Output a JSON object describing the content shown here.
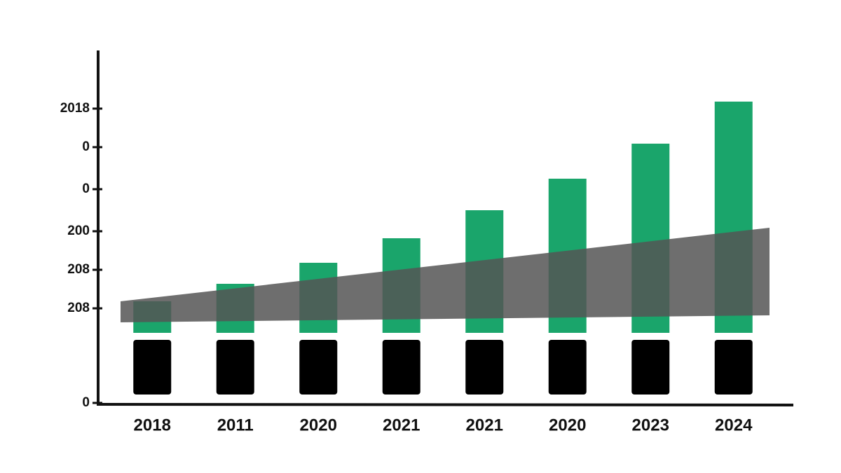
{
  "chart_data": {
    "type": "bar",
    "categories": [
      "2018",
      "2011",
      "2020",
      "2021",
      "2021",
      "2020",
      "2023",
      "2024"
    ],
    "series": [
      {
        "color": "#000000",
        "values": [
          20,
          20,
          20,
          20,
          20,
          20,
          20,
          20
        ]
      },
      {
        "color": "#1aa56b",
        "values": [
          9,
          14,
          20,
          27,
          35,
          44,
          54,
          66
        ]
      }
    ],
    "stacked": true,
    "band": {
      "color": "#555555",
      "lower": [
        23,
        25
      ],
      "upper": [
        29,
        50
      ]
    },
    "ylim": [
      0,
      100
    ],
    "yticks": [
      0,
      {
        "value": 27,
        "label": "208"
      },
      {
        "value": 38,
        "label": "208"
      },
      {
        "value": 49,
        "label": "200"
      },
      {
        "value": 61,
        "label": "0"
      },
      {
        "value": 73,
        "label": "0"
      },
      {
        "value": 84,
        "label": "2018"
      }
    ],
    "grid": false
  }
}
